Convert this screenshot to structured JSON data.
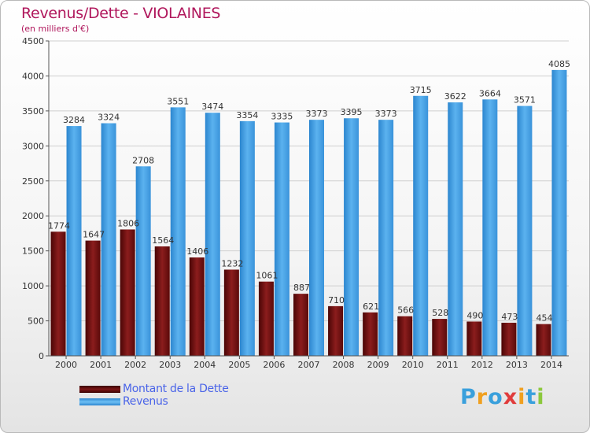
{
  "header": {
    "title": "Revenus/Dette - VIOLAINES",
    "subtitle": "(en milliers d'€)"
  },
  "logo": {
    "letters": [
      "P",
      "r",
      "o",
      "x",
      "i",
      "t",
      "i"
    ]
  },
  "chart_data": {
    "type": "bar",
    "title": "Revenus/Dette - VIOLAINES",
    "subtitle": "(en milliers d'€)",
    "categories": [
      "2000",
      "2001",
      "2002",
      "2003",
      "2004",
      "2005",
      "2006",
      "2007",
      "2008",
      "2009",
      "2010",
      "2011",
      "2012",
      "2013",
      "2014"
    ],
    "yticks": [
      0,
      500,
      1000,
      1500,
      2000,
      2500,
      3000,
      3500,
      4000,
      4500
    ],
    "ylim": [
      0,
      4500
    ],
    "grid": true,
    "legend_position": "bottom-left",
    "series": [
      {
        "name": "Montant de la Dette",
        "color": "#7a1515",
        "values": [
          1774,
          1647,
          1806,
          1564,
          1406,
          1232,
          1061,
          887,
          710,
          621,
          566,
          528,
          490,
          473,
          454
        ],
        "labels": [
          "1774",
          "1647",
          "1806",
          "1564",
          "1406",
          "1232",
          "1061",
          "887",
          "710",
          "621",
          "566",
          "528",
          "490",
          "473",
          "454"
        ]
      },
      {
        "name": "Revenus",
        "color": "#4aa3e6",
        "values": [
          3284,
          3324,
          2708,
          3551,
          3474,
          3354,
          3335,
          3373,
          3395,
          3373,
          3715,
          3622,
          3664,
          3571,
          4085
        ],
        "labels": [
          "3284",
          "3324",
          "2708",
          "3551",
          "3474",
          "3354",
          "3335",
          "3373",
          "3395",
          "3373",
          "3715",
          "3622",
          "3664",
          "3571",
          "4085"
        ]
      }
    ]
  }
}
